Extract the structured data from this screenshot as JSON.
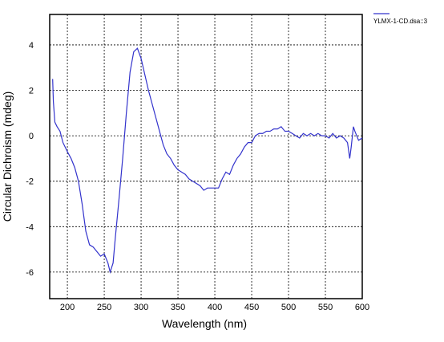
{
  "chart_data": {
    "type": "line",
    "x_label": "Wavelength (nm)",
    "y_label": "Circular Dichroism (mdeg)",
    "x": [
      180,
      181,
      183,
      186,
      190,
      194,
      197,
      200,
      205,
      210,
      215,
      220,
      225,
      230,
      235,
      240,
      245,
      250,
      255,
      258,
      262,
      265,
      270,
      275,
      280,
      285,
      290,
      295,
      300,
      305,
      310,
      315,
      320,
      325,
      330,
      335,
      340,
      345,
      350,
      355,
      360,
      365,
      370,
      375,
      380,
      385,
      390,
      395,
      400,
      405,
      410,
      415,
      420,
      425,
      430,
      435,
      440,
      445,
      450,
      455,
      460,
      465,
      470,
      475,
      480,
      485,
      490,
      495,
      500,
      505,
      510,
      515,
      520,
      525,
      530,
      535,
      540,
      545,
      550,
      555,
      560,
      565,
      570,
      575,
      580,
      583,
      585,
      588,
      590,
      595,
      600
    ],
    "series": [
      {
        "name": "YLMX-1-CD.dsa::3",
        "color": "#3333cc",
        "values": [
          2.5,
          1.5,
          0.6,
          0.4,
          0.2,
          -0.3,
          -0.5,
          -0.7,
          -1.0,
          -1.4,
          -2.0,
          -3.0,
          -4.2,
          -4.8,
          -4.9,
          -5.1,
          -5.3,
          -5.2,
          -5.6,
          -6.0,
          -5.6,
          -4.5,
          -2.8,
          -1.0,
          1.0,
          2.8,
          3.7,
          3.85,
          3.4,
          2.7,
          2.0,
          1.4,
          0.8,
          0.2,
          -0.4,
          -0.8,
          -1.0,
          -1.3,
          -1.5,
          -1.6,
          -1.7,
          -1.9,
          -2.0,
          -2.1,
          -2.2,
          -2.4,
          -2.3,
          -2.3,
          -2.3,
          -2.3,
          -1.9,
          -1.6,
          -1.7,
          -1.3,
          -1.0,
          -0.8,
          -0.5,
          -0.3,
          -0.3,
          0.0,
          0.1,
          0.1,
          0.2,
          0.2,
          0.3,
          0.3,
          0.4,
          0.2,
          0.2,
          0.1,
          0.0,
          -0.1,
          0.1,
          0.0,
          0.1,
          0.0,
          0.1,
          0.0,
          0.0,
          -0.1,
          0.1,
          -0.1,
          0.0,
          -0.1,
          -0.3,
          -1.0,
          -0.5,
          0.4,
          0.2,
          -0.2,
          -0.1
        ]
      }
    ],
    "xlim": [
      176,
      600
    ],
    "xticks": [
      200,
      250,
      300,
      350,
      400,
      450,
      500,
      550,
      600
    ],
    "ylim": [
      -7.17,
      5.34
    ],
    "yticks": [
      -6,
      -4,
      -2,
      0,
      2,
      4
    ],
    "grid": true
  }
}
